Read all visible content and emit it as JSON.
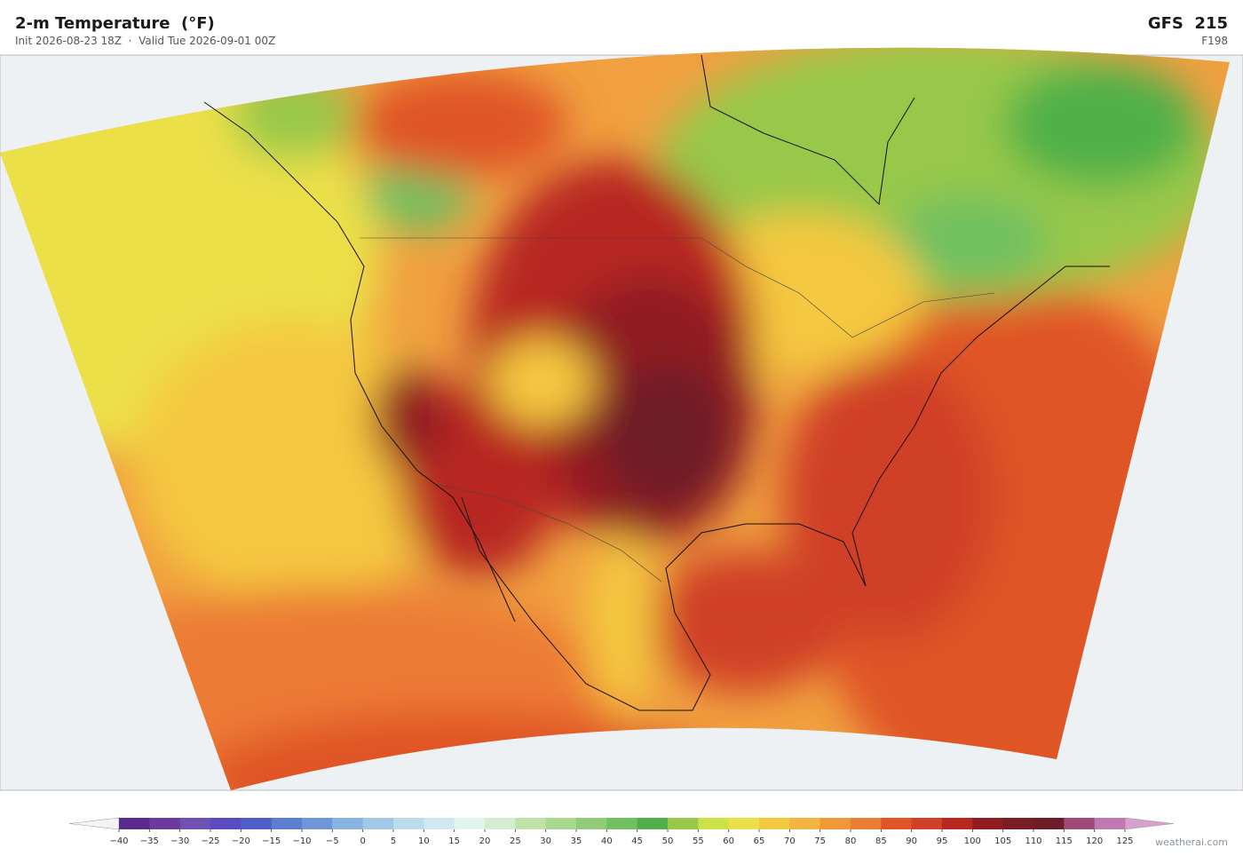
{
  "header": {
    "title": "2-m Temperature  (°F)",
    "subtitle": "Init 2026-08-23 18Z  ·  Valid Tue 2026-09-01 00Z",
    "model": "GFS  215",
    "forecast_hour": "F198"
  },
  "colorbar": {
    "ticks": [
      {
        "value": -40,
        "label": "−40"
      },
      {
        "value": -35,
        "label": "−35"
      },
      {
        "value": -30,
        "label": "−30"
      },
      {
        "value": -25,
        "label": "−25"
      },
      {
        "value": -20,
        "label": "−20"
      },
      {
        "value": -15,
        "label": "−15"
      },
      {
        "value": -10,
        "label": "−10"
      },
      {
        "value": -5,
        "label": "−5"
      },
      0,
      5,
      10,
      15,
      20,
      25,
      30,
      35,
      40,
      45,
      50,
      55,
      60,
      65,
      70,
      75,
      80,
      85,
      90,
      95,
      100,
      105,
      110,
      115,
      120,
      125
    ],
    "colors": [
      "#5b2a8f",
      "#6a3a9e",
      "#7050b0",
      "#5a4cc0",
      "#4e5ec8",
      "#5c7ed0",
      "#7096d8",
      "#8ab4e0",
      "#a2c8e8",
      "#bcdcee",
      "#d2e8f0",
      "#e2f2ee",
      "#d6ecd0",
      "#c0e2a8",
      "#a8d890",
      "#90cc78",
      "#70c060",
      "#50b048",
      "#98c848",
      "#cce048",
      "#ece048",
      "#f4c840",
      "#f4b440",
      "#f09838",
      "#ec7c34",
      "#e05428",
      "#d04028",
      "#b82820",
      "#901c20",
      "#7a1c24",
      "#6e1c28",
      "#a04878",
      "#c078b0"
    ],
    "under_color": "#f4f4f6",
    "over_color": "#d8a0cc"
  },
  "footer": {
    "credit": "weatherai.com"
  }
}
